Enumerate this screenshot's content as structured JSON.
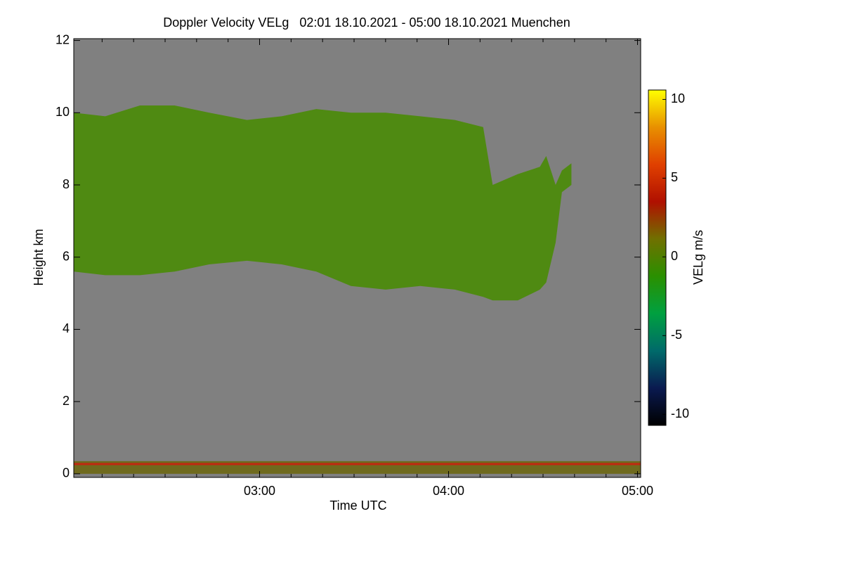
{
  "chart_data": {
    "type": "time-height",
    "title": "Doppler Velocity VELg   02:01 18.10.2021 - 05:00 18.10.2021 Muenchen",
    "x_label": "Time UTC",
    "y_label": "Height km",
    "xlim": [
      121,
      301
    ],
    "xticks": [
      {
        "value": 180,
        "label": "03:00"
      },
      {
        "value": 240,
        "label": "04:00"
      },
      {
        "value": 300,
        "label": "05:00"
      }
    ],
    "xminorticks": [
      130,
      140,
      150,
      160,
      170,
      190,
      200,
      210,
      220,
      230,
      250,
      260,
      270,
      280,
      290
    ],
    "ylim": [
      -0.1,
      12.05
    ],
    "yticks": [
      0,
      2,
      4,
      6,
      8,
      10,
      12
    ],
    "background": "#808080",
    "layers": [
      {
        "color": "#4f8a12",
        "x": [
          121,
          131,
          142,
          153,
          164,
          176,
          187,
          198,
          209,
          220,
          231,
          242,
          251,
          254,
          262,
          269,
          271,
          274,
          276,
          279
        ],
        "top": [
          10.0,
          9.9,
          10.2,
          10.2,
          10.0,
          9.8,
          9.9,
          10.1,
          10.0,
          10.0,
          9.9,
          9.8,
          9.6,
          8.0,
          8.3,
          8.5,
          8.8,
          8.0,
          8.4,
          8.6
        ],
        "base": [
          5.6,
          5.5,
          5.5,
          5.6,
          5.8,
          5.9,
          5.8,
          5.6,
          5.2,
          5.1,
          5.2,
          5.1,
          4.9,
          4.8,
          4.8,
          5.1,
          5.3,
          6.4,
          7.8,
          8.0
        ]
      },
      {
        "color": "#6f6a1e",
        "x": [
          121,
          301
        ],
        "top": [
          0.35,
          0.35
        ],
        "base": [
          0,
          0
        ]
      },
      {
        "color": "#c02810",
        "x": [
          121,
          301
        ],
        "top": [
          0.3,
          0.3
        ],
        "base": [
          0.24,
          0.24
        ]
      }
    ],
    "colorbar": {
      "label": "VELg m/s",
      "lim": [
        -10.7,
        10.6
      ],
      "ticks": [
        -10,
        -5,
        0,
        5,
        10
      ],
      "colors": [
        "#000000",
        "#0a1a50",
        "#006a6a",
        "#00a040",
        "#2a9000",
        "#707000",
        "#b01000",
        "#e04000",
        "#e89000",
        "#ffff00"
      ]
    }
  }
}
